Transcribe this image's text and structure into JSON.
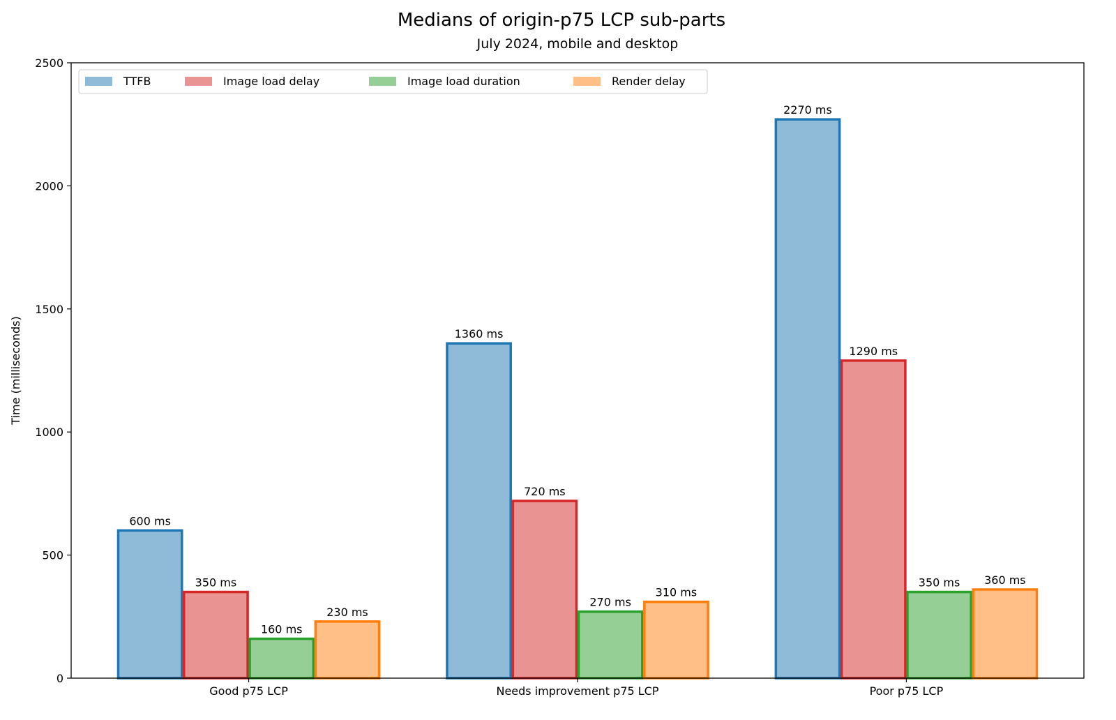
{
  "chart_data": {
    "type": "bar",
    "title": "Medians of origin-p75 LCP sub-parts",
    "subtitle": "July 2024, mobile and desktop",
    "xlabel": "",
    "ylabel": "Time (milliseconds)",
    "ylim": [
      0,
      2500
    ],
    "yticks": [
      0,
      500,
      1000,
      1500,
      2000,
      2500
    ],
    "categories": [
      "Good p75 LCP",
      "Needs improvement p75 LCP",
      "Poor p75 LCP"
    ],
    "legend_position": "top-left",
    "grid": false,
    "value_suffix": " ms",
    "series": [
      {
        "name": "TTFB",
        "values": [
          600,
          1360,
          2270
        ],
        "fill": "#8fbbd9",
        "edge": "#1f77b4"
      },
      {
        "name": "Image load delay",
        "values": [
          350,
          720,
          1290
        ],
        "fill": "#ea9393",
        "edge": "#d62728"
      },
      {
        "name": "Image load duration",
        "values": [
          160,
          270,
          350
        ],
        "fill": "#95cf95",
        "edge": "#2ca02c"
      },
      {
        "name": "Render delay",
        "values": [
          230,
          310,
          360
        ],
        "fill": "#ffbf86",
        "edge": "#ff7f0e"
      }
    ]
  }
}
